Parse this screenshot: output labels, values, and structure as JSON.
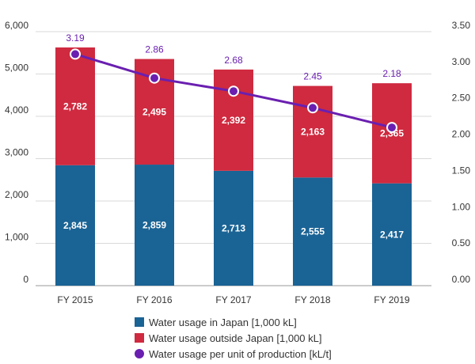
{
  "chart_data": {
    "type": "bar",
    "stacked": true,
    "categories": [
      "FY 2015",
      "FY 2016",
      "FY 2017",
      "FY 2018",
      "FY 2019"
    ],
    "series": [
      {
        "name": "Water usage in Japan [1,000 kL]",
        "axis": "left",
        "color": "#1a6395",
        "values": [
          2845,
          2859,
          2713,
          2555,
          2417
        ],
        "labels": [
          "2,845",
          "2,859",
          "2,713",
          "2,555",
          "2,417"
        ]
      },
      {
        "name": "Water usage outside Japan [1,000 kL]",
        "axis": "left",
        "color": "#cf2a3f",
        "values": [
          2782,
          2495,
          2392,
          2163,
          2365
        ],
        "labels": [
          "2,782",
          "2,495",
          "2,392",
          "2,163",
          "2,365"
        ]
      },
      {
        "name": "Water usage per unit of production [kL/t]",
        "type": "line",
        "axis": "right",
        "color": "#6a1fb0",
        "values": [
          3.19,
          2.86,
          2.68,
          2.45,
          2.18
        ],
        "labels": [
          "3.19",
          "2.86",
          "2.68",
          "2.45",
          "2.18"
        ]
      }
    ],
    "left_axis": {
      "ylim": [
        0,
        6000
      ],
      "ticks": [
        "0",
        "1,000",
        "2,000",
        "3,000",
        "4,000",
        "5,000",
        "6,000"
      ]
    },
    "right_axis": {
      "ylim": [
        0,
        3.5
      ],
      "ticks": [
        "0.00",
        "0.50",
        "1.00",
        "1.50",
        "2.00",
        "2.50",
        "3.00",
        "3.50"
      ]
    },
    "grid": true,
    "legend_position": "bottom"
  }
}
